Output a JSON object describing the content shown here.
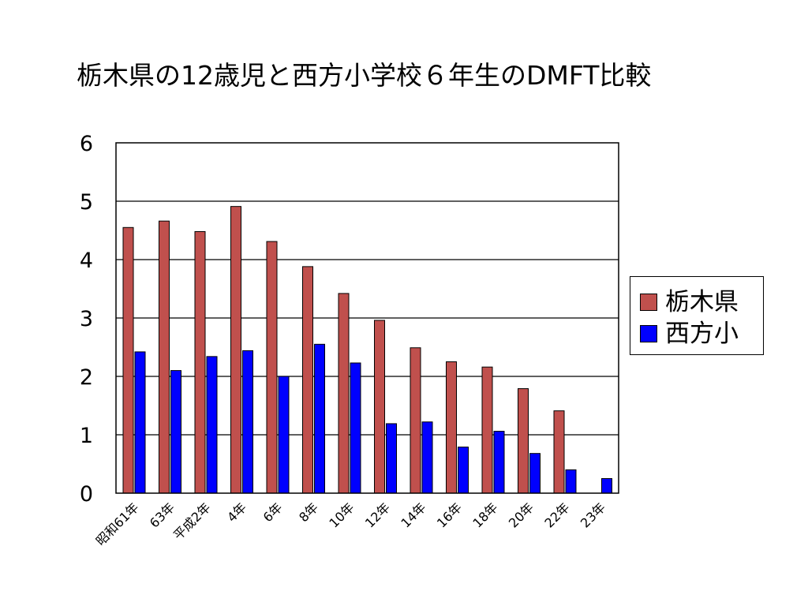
{
  "title": "栃木県の12歳児と西方小学校６年生のDMFT比較",
  "colors": {
    "tochigi": "#c0504d",
    "nishikata": "#0000ff",
    "outline": "#000000",
    "grid": "#000000"
  },
  "chart_data": {
    "type": "bar",
    "title": "栃木県の12歳児と西方小学校６年生のDMFT比較",
    "xlabel": "",
    "ylabel": "",
    "ylim": [
      0,
      6
    ],
    "yticks": [
      "0",
      "1",
      "2",
      "3",
      "4",
      "5",
      "6"
    ],
    "grid": true,
    "legend_position": "right",
    "categories": [
      "昭和61年",
      "63年",
      "平成2年",
      "4年",
      "6年",
      "8年",
      "10年",
      "12年",
      "14年",
      "16年",
      "18年",
      "20年",
      "22年",
      "23年"
    ],
    "series": [
      {
        "name": "栃木県",
        "values": [
          4.55,
          4.66,
          4.48,
          4.91,
          4.31,
          3.88,
          3.42,
          2.96,
          2.49,
          2.25,
          2.16,
          1.79,
          1.41,
          null
        ]
      },
      {
        "name": "西方小",
        "values": [
          2.42,
          2.1,
          2.34,
          2.44,
          2.0,
          2.55,
          2.23,
          1.19,
          1.22,
          0.79,
          1.06,
          0.68,
          0.4,
          0.25
        ]
      }
    ]
  }
}
